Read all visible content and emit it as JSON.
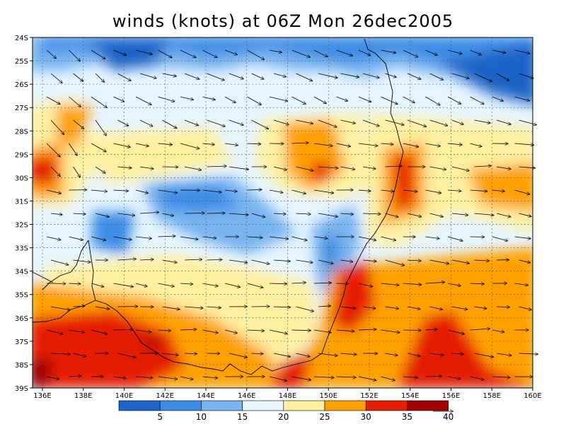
{
  "title": "winds (knots) at 06Z Mon 26dec2005",
  "map": {
    "lat_labels": [
      "24S",
      "25S",
      "26S",
      "27S",
      "28S",
      "29S",
      "30S",
      "31S",
      "32S",
      "33S",
      "34S",
      "35S",
      "36S",
      "37S",
      "38S",
      "39S"
    ],
    "lon_labels": [
      "136E",
      "138E",
      "140E",
      "142E",
      "144E",
      "146E",
      "148E",
      "150E",
      "152E",
      "154E",
      "156E",
      "158E",
      "160E"
    ]
  },
  "colorbar": {
    "ticks": [
      "5",
      "10",
      "15",
      "20",
      "25",
      "30",
      "35",
      "40"
    ],
    "colors": [
      "#1e64c8",
      "#3c8ce6",
      "#78b4f0",
      "#e6f5ff",
      "#fff0a0",
      "#ffa000",
      "#e61e00",
      "#a00000"
    ]
  }
}
